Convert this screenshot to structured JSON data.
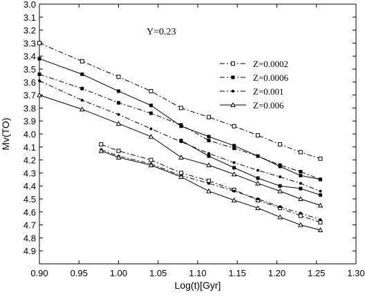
{
  "chart_data": {
    "type": "line",
    "xlabel": "Log(t)[Gyr]",
    "ylabel": "Mv(TO)",
    "annotation": "Y=0.23",
    "xlim": [
      0.9,
      1.3
    ],
    "ylim": [
      3.0,
      4.9
    ],
    "y_inverted": true,
    "legend_position": "top-right",
    "x_ticks": [
      "0.90",
      "0.95",
      "1.00",
      "1.05",
      "1.10",
      "1.15",
      "1.20",
      "1.25",
      "1.30"
    ],
    "y_ticks": [
      "3.0",
      "3.1",
      "3.2",
      "3.3",
      "3.4",
      "3.5",
      "3.6",
      "3.7",
      "3.8",
      "3.9",
      "4.0",
      "4.1",
      "4.2",
      "4.3",
      "4.4",
      "4.5",
      "4.6",
      "4.7",
      "4.8",
      "4.9"
    ],
    "series": [
      {
        "name": "Z=0.0002",
        "marker": "open-square",
        "dash": "dashdot",
        "upper": {
          "x": [
            0.9,
            0.954,
            1.0,
            1.041,
            1.079,
            1.114,
            1.146,
            1.176,
            1.204,
            1.23,
            1.255
          ],
          "y": [
            3.3,
            3.44,
            3.56,
            3.67,
            3.8,
            3.87,
            3.94,
            4.01,
            4.08,
            4.14,
            4.19
          ]
        },
        "lower": {
          "x": [
            0.978,
            1.0,
            1.041,
            1.079,
            1.114,
            1.146,
            1.176,
            1.204,
            1.23,
            1.255
          ],
          "y": [
            4.08,
            4.13,
            4.2,
            4.3,
            4.36,
            4.43,
            4.51,
            4.57,
            4.63,
            4.68
          ]
        }
      },
      {
        "name": "Z=0.0006",
        "marker": "filled-square",
        "dash": "dashdot",
        "upper": {
          "x": [
            0.9,
            0.954,
            1.0,
            1.041,
            1.079,
            1.114,
            1.146,
            1.176,
            1.204,
            1.23,
            1.255
          ],
          "y": [
            3.54,
            3.65,
            3.76,
            3.84,
            3.93,
            4.05,
            4.11,
            4.17,
            4.24,
            4.29,
            4.35
          ]
        },
        "lower": null
      },
      {
        "name": "Z=0.001",
        "marker": "filled-dot",
        "dash": "dashdot",
        "upper": {
          "x": [
            0.9,
            0.954,
            1.0,
            1.041,
            1.079,
            1.114,
            1.146,
            1.176,
            1.204,
            1.23,
            1.255
          ],
          "y": [
            3.59,
            3.74,
            3.85,
            3.96,
            4.06,
            4.15,
            4.22,
            4.28,
            4.33,
            4.38,
            4.44
          ]
        },
        "lower": {
          "x": [
            0.978,
            1.0,
            1.041,
            1.079,
            1.114,
            1.146,
            1.176,
            1.204,
            1.23,
            1.255
          ],
          "y": [
            4.12,
            4.17,
            4.23,
            4.32,
            4.38,
            4.44,
            4.5,
            4.56,
            4.61,
            4.66
          ]
        }
      },
      {
        "name": "Z=0.006",
        "marker": "open-triangle",
        "dash": "solid",
        "upper": {
          "x": [
            0.9,
            0.954,
            1.0,
            1.041,
            1.079,
            1.114,
            1.146,
            1.176,
            1.204,
            1.23,
            1.255
          ],
          "y": [
            3.7,
            3.81,
            3.92,
            4.02,
            4.18,
            4.24,
            4.31,
            4.38,
            4.44,
            4.5,
            4.55
          ]
        },
        "lower": {
          "x": [
            0.978,
            1.0,
            1.041,
            1.079,
            1.114,
            1.146,
            1.176,
            1.204,
            1.23,
            1.255
          ],
          "y": [
            4.13,
            4.18,
            4.24,
            4.33,
            4.44,
            4.51,
            4.57,
            4.64,
            4.7,
            4.74
          ]
        }
      }
    ],
    "extra_line": {
      "marker": "filled-square",
      "dash": "solid",
      "x": [
        0.9,
        0.954,
        1.0,
        1.041,
        1.079,
        1.114,
        1.146,
        1.176,
        1.204,
        1.23,
        1.255
      ],
      "y": [
        3.42,
        3.54,
        3.67,
        3.78,
        3.94,
        4.02,
        4.09,
        4.17,
        4.25,
        4.32,
        4.35
      ]
    },
    "extra_lower": {
      "marker": "filled-square",
      "dash": "solid",
      "x": [
        1.079,
        1.114,
        1.146,
        1.176,
        1.204,
        1.23,
        1.255
      ],
      "y": [
        4.05,
        4.17,
        4.26,
        4.34,
        4.4,
        4.42,
        4.47
      ]
    }
  }
}
